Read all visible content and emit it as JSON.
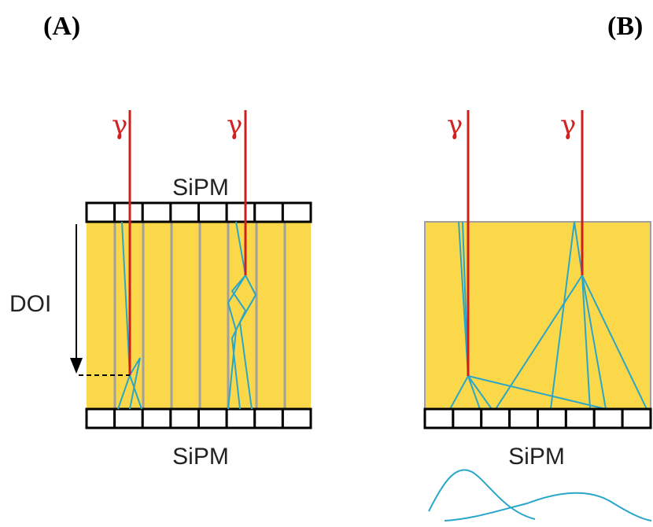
{
  "labels": {
    "panel_a": "(A)",
    "panel_b": "(B)"
  },
  "panel_a": {
    "gamma_1": "γ",
    "gamma_2": "γ",
    "sipm_top": "SiPM",
    "sipm_bottom": "SiPM",
    "doi": "DOI"
  },
  "panel_b": {
    "gamma_1": "γ",
    "gamma_2": "γ",
    "sipm_bottom": "SiPM"
  }
}
